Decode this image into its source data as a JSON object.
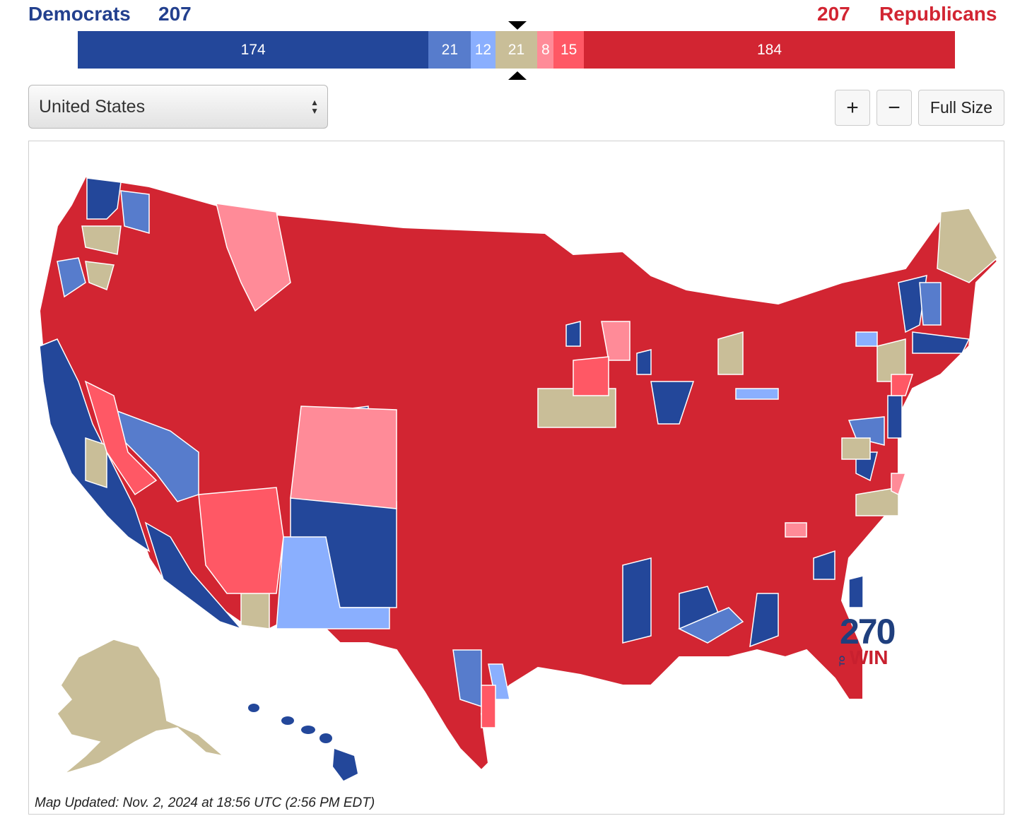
{
  "header": {
    "dem_label": "Democrats",
    "dem_total": "207",
    "rep_total": "207",
    "rep_label": "Republicans"
  },
  "bar": [
    {
      "label": "174",
      "value": 174,
      "color": "#23479a"
    },
    {
      "label": "21",
      "value": 21,
      "color": "#577ccc"
    },
    {
      "label": "12",
      "value": 12,
      "color": "#8aaffe"
    },
    {
      "label": "21",
      "value": 21,
      "color": "#c9be98"
    },
    {
      "label": "8",
      "value": 8,
      "color": "#ff8b98"
    },
    {
      "label": "15",
      "value": 15,
      "color": "#ff5865"
    },
    {
      "label": "184",
      "value": 184,
      "color": "#d22532"
    }
  ],
  "controls": {
    "region_select": "United States",
    "zoom_in": "+",
    "zoom_out": "−",
    "full_size": "Full Size"
  },
  "legend_colors": {
    "safe_dem": "#23479a",
    "likely_dem": "#577ccc",
    "lean_dem": "#8aaffe",
    "tossup": "#c9be98",
    "lean_rep": "#ff8b98",
    "likely_rep": "#ff5865",
    "safe_rep": "#d22532"
  },
  "logo": {
    "number": "270",
    "to": "TO",
    "win": "WIN"
  },
  "footer": {
    "updated": "Map Updated: Nov. 2, 2024 at 18:56 UTC (2:56 PM EDT)"
  }
}
